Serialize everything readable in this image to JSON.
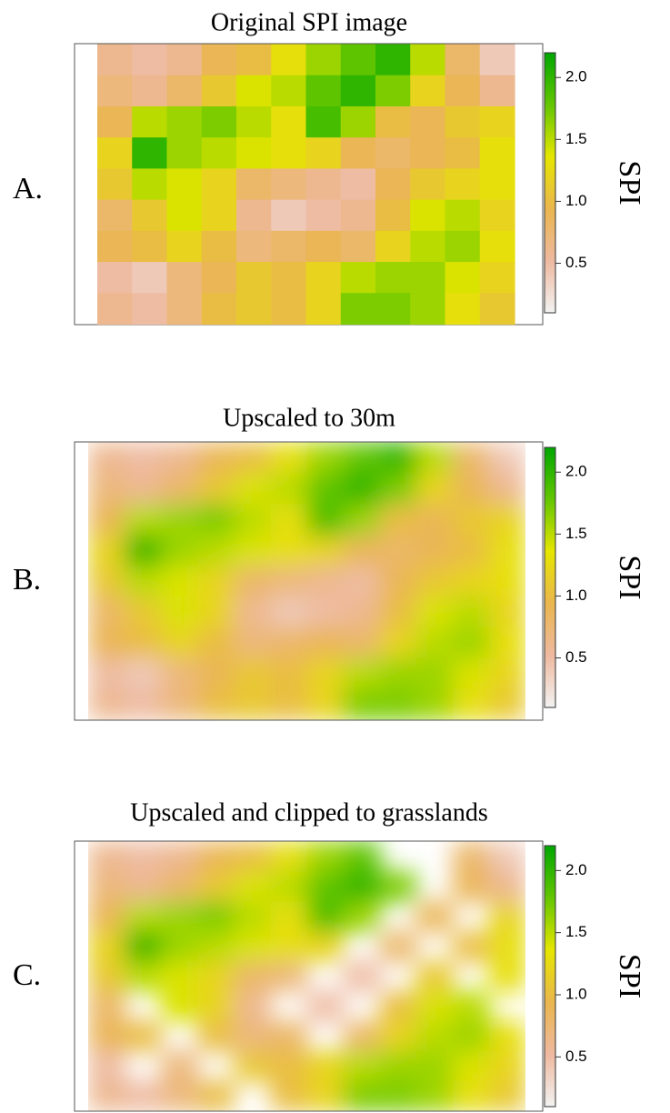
{
  "chart_data": [
    {
      "type": "raster",
      "title": "Original SPI image",
      "panel_label": "A.",
      "colorbar_label": "SPI",
      "smooth": false,
      "colorscale": [
        "#F2F2F2",
        "#EEB99F",
        "#EAB64E",
        "#E6E600",
        "#63C600",
        "#00A600"
      ],
      "zlim": [
        0.1,
        2.2
      ],
      "zticks": [
        {
          "value": 0.5,
          "label": "0.5"
        },
        {
          "value": 1,
          "label": "1.0"
        },
        1.5,
        {
          "value": 2,
          "label": "2.0"
        }
      ],
      "values": [
        [
          0.6,
          0.5,
          0.6,
          0.9,
          1.0,
          1.3,
          1.6,
          1.8,
          2.0,
          1.5,
          0.8,
          0.4
        ],
        [
          0.7,
          0.6,
          0.8,
          1.1,
          1.4,
          1.5,
          1.8,
          2.0,
          1.7,
          1.2,
          0.9,
          0.6
        ],
        [
          0.9,
          1.5,
          1.6,
          1.7,
          1.5,
          1.3,
          1.9,
          1.6,
          1.0,
          0.9,
          1.1,
          1.2
        ],
        [
          1.2,
          2.0,
          1.6,
          1.5,
          1.4,
          1.3,
          1.2,
          0.9,
          0.8,
          0.9,
          1.0,
          1.3
        ],
        [
          1.1,
          1.5,
          1.4,
          1.2,
          0.8,
          0.7,
          0.6,
          0.5,
          0.9,
          1.1,
          1.2,
          1.3
        ],
        [
          0.8,
          1.1,
          1.4,
          1.2,
          0.6,
          0.4,
          0.5,
          0.6,
          1.0,
          1.4,
          1.5,
          1.2
        ],
        [
          0.9,
          1.0,
          1.2,
          1.0,
          0.7,
          0.8,
          0.9,
          0.8,
          1.2,
          1.5,
          1.6,
          1.3
        ],
        [
          0.5,
          0.4,
          0.7,
          0.9,
          1.1,
          1.0,
          1.2,
          1.5,
          1.6,
          1.6,
          1.4,
          1.2
        ],
        [
          0.6,
          0.5,
          0.7,
          1.0,
          1.1,
          1.0,
          1.2,
          1.7,
          1.7,
          1.6,
          1.3,
          1.1
        ]
      ]
    },
    {
      "type": "raster",
      "title": "Upscaled to 30m",
      "panel_label": "B.",
      "colorbar_label": "SPI",
      "smooth": true,
      "colorscale": [
        "#F2F2F2",
        "#EEB99F",
        "#EAB64E",
        "#E6E600",
        "#63C600",
        "#00A600"
      ],
      "zlim": [
        0.1,
        2.2
      ],
      "zticks": [
        {
          "value": 0.5,
          "label": "0.5"
        },
        {
          "value": 1,
          "label": "1.0"
        },
        1.5,
        {
          "value": 2,
          "label": "2.0"
        }
      ],
      "values": [
        [
          0.6,
          0.5,
          0.6,
          0.9,
          1.0,
          1.3,
          1.6,
          1.8,
          2.0,
          1.5,
          0.8,
          0.4
        ],
        [
          0.7,
          0.6,
          0.8,
          1.1,
          1.4,
          1.5,
          1.8,
          2.0,
          1.7,
          1.2,
          0.9,
          0.6
        ],
        [
          0.9,
          1.5,
          1.6,
          1.7,
          1.5,
          1.3,
          1.9,
          1.6,
          1.0,
          0.9,
          1.1,
          1.2
        ],
        [
          1.2,
          2.0,
          1.6,
          1.5,
          1.4,
          1.3,
          1.2,
          0.9,
          0.8,
          0.9,
          1.0,
          1.3
        ],
        [
          1.1,
          1.5,
          1.4,
          1.2,
          0.8,
          0.7,
          0.6,
          0.5,
          0.9,
          1.1,
          1.2,
          1.3
        ],
        [
          0.8,
          1.1,
          1.4,
          1.2,
          0.6,
          0.4,
          0.5,
          0.6,
          1.0,
          1.4,
          1.5,
          1.2
        ],
        [
          0.9,
          1.0,
          1.2,
          1.0,
          0.7,
          0.8,
          0.9,
          0.8,
          1.2,
          1.5,
          1.6,
          1.3
        ],
        [
          0.5,
          0.4,
          0.7,
          0.9,
          1.1,
          1.0,
          1.2,
          1.5,
          1.6,
          1.6,
          1.4,
          1.2
        ],
        [
          0.6,
          0.5,
          0.7,
          1.0,
          1.1,
          1.0,
          1.2,
          1.7,
          1.7,
          1.6,
          1.3,
          1.1
        ]
      ]
    },
    {
      "type": "raster",
      "title": "Upscaled and clipped to grasslands",
      "panel_label": "C.",
      "colorbar_label": "SPI",
      "smooth": true,
      "colorscale": [
        "#F2F2F2",
        "#EEB99F",
        "#EAB64E",
        "#E6E600",
        "#63C600",
        "#00A600"
      ],
      "zlim": [
        0.1,
        2.2
      ],
      "zticks": [
        {
          "value": 0.5,
          "label": "0.5"
        },
        {
          "value": 1,
          "label": "1.0"
        },
        1.5,
        {
          "value": 2,
          "label": "2.0"
        }
      ],
      "values": [
        [
          0.6,
          0.5,
          0.6,
          0.9,
          1.0,
          1.3,
          1.6,
          1.8,
          null,
          null,
          0.8,
          0.4
        ],
        [
          0.7,
          0.6,
          0.8,
          1.1,
          1.4,
          1.5,
          1.8,
          2.0,
          1.7,
          null,
          0.9,
          0.6
        ],
        [
          0.9,
          1.5,
          1.6,
          1.7,
          1.5,
          1.3,
          1.9,
          1.6,
          null,
          0.9,
          null,
          1.2
        ],
        [
          1.2,
          2.0,
          1.6,
          1.5,
          1.4,
          1.3,
          1.2,
          null,
          0.8,
          null,
          1.0,
          1.3
        ],
        [
          1.1,
          1.5,
          1.4,
          1.2,
          0.8,
          0.7,
          null,
          0.5,
          null,
          1.1,
          null,
          1.3
        ],
        [
          0.8,
          null,
          1.4,
          1.2,
          0.6,
          null,
          0.5,
          null,
          1.0,
          1.4,
          1.5,
          null
        ],
        [
          0.9,
          1.0,
          null,
          1.0,
          0.7,
          0.8,
          null,
          0.8,
          1.2,
          1.5,
          1.6,
          1.3
        ],
        [
          0.5,
          null,
          0.7,
          null,
          1.1,
          1.0,
          1.2,
          1.5,
          1.6,
          1.6,
          1.4,
          1.2
        ],
        [
          0.6,
          0.5,
          0.7,
          1.0,
          null,
          1.0,
          1.2,
          1.7,
          1.7,
          1.6,
          1.3,
          1.1
        ]
      ]
    }
  ]
}
